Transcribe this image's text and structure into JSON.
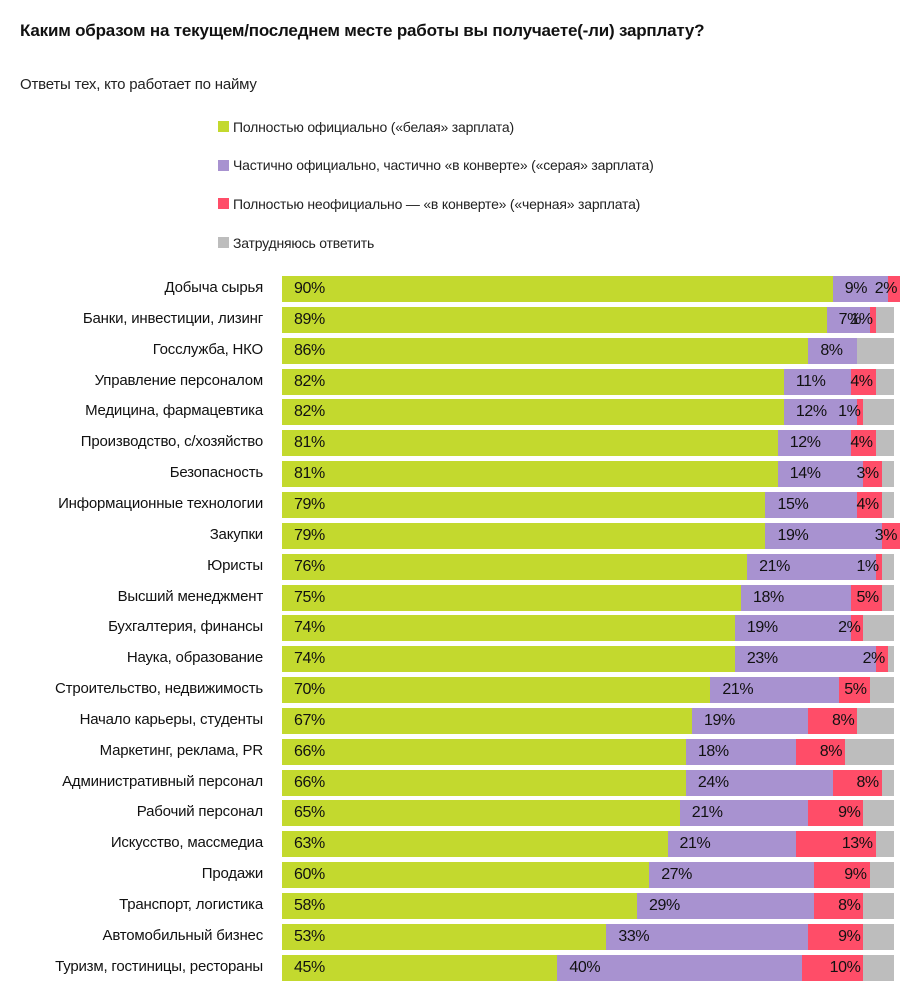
{
  "header": {
    "title": "Каким образом на текущем/последнем месте работы вы получаете(-ли) зарплату?",
    "subtitle": "Ответы тех, кто работает по найму"
  },
  "chart_data": {
    "type": "bar",
    "orientation": "horizontal",
    "stacked": true,
    "title": "Каким образом на текущем/последнем месте работы вы получаете(-ли) зарплату?",
    "subtitle": "Ответы тех, кто работает по найму",
    "xlabel": "",
    "ylabel": "",
    "xlim": [
      0,
      100
    ],
    "grid": false,
    "legend_position": "top",
    "value_suffix": "%",
    "categories": [
      "Добыча сырья",
      "Банки, инвестиции, лизинг",
      "Госслужба, НКО",
      "Управление персоналом",
      "Медицина, фармацевтика",
      "Производство, с/хозяйство",
      "Безопасность",
      "Информационные технологии",
      "Закупки",
      "Юристы",
      "Высший менеджмент",
      "Бухгалтерия, финансы",
      "Наука, образование",
      "Строительство, недвижимость",
      "Начало карьеры, студенты",
      "Маркетинг, реклама, PR",
      "Административный персонал",
      "Рабочий персонал",
      "Искусство, массмедиа",
      "Продажи",
      "Транспорт, логистика",
      "Автомобильный бизнес",
      "Туризм, гостиницы, рестораны"
    ],
    "series": [
      {
        "name": "Полностью официально («белая» зарплата)",
        "color": "#c3d92e",
        "values": [
          90,
          89,
          86,
          82,
          82,
          81,
          81,
          79,
          79,
          76,
          75,
          74,
          74,
          70,
          67,
          66,
          66,
          65,
          63,
          60,
          58,
          53,
          45
        ]
      },
      {
        "name": "Частично официально, частично «в конверте» («серая» зарплата)",
        "color": "#a892d0",
        "values": [
          9,
          7,
          8,
          11,
          12,
          12,
          14,
          15,
          19,
          21,
          18,
          19,
          23,
          21,
          19,
          18,
          24,
          21,
          21,
          27,
          29,
          33,
          40
        ]
      },
      {
        "name": "Полностью неофициально — «в конверте» («черная» зарплата)",
        "color": "#ff4d68",
        "values": [
          2,
          1,
          0,
          4,
          1,
          4,
          3,
          4,
          3,
          1,
          5,
          2,
          2,
          5,
          8,
          8,
          8,
          9,
          13,
          9,
          8,
          9,
          10
        ]
      },
      {
        "name": "Затрудняюсь ответить",
        "color": "#bdbdbd",
        "values": null,
        "note": "remainder to 100%, unlabeled"
      }
    ]
  }
}
